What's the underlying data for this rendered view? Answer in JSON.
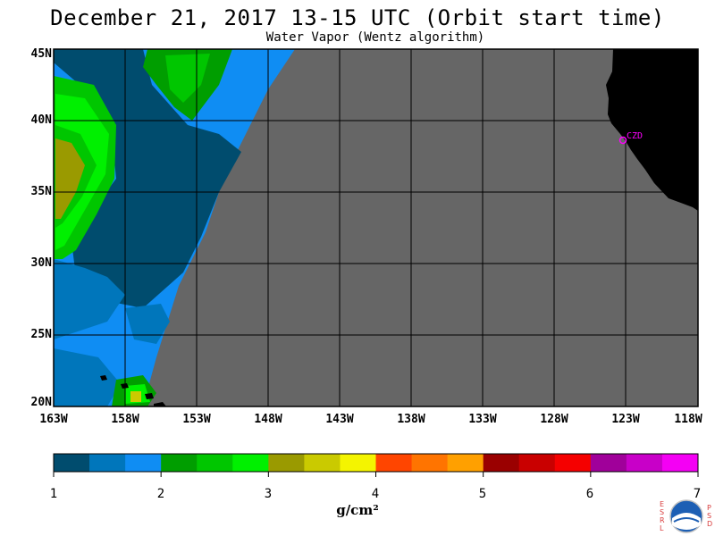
{
  "title": "December 21, 2017  13-15 UTC  (Orbit start time)",
  "subtitle": "Water Vapor (Wentz algorithm)",
  "lat_labels": [
    "45N",
    "40N",
    "35N",
    "30N",
    "25N",
    "20N"
  ],
  "lon_labels": [
    "163W",
    "158W",
    "153W",
    "148W",
    "143W",
    "138W",
    "133W",
    "128W",
    "123W",
    "118W"
  ],
  "station_label": "CZD",
  "colorbar": {
    "ticks": [
      "1",
      "2",
      "3",
      "4",
      "5",
      "6",
      "7"
    ],
    "unit": "g/cm²",
    "colors": [
      "#004c6e",
      "#0076bb",
      "#0f8df3",
      "#009e00",
      "#00c600",
      "#00f000",
      "#9a9a00",
      "#caca00",
      "#f4f400",
      "#ff4500",
      "#ff7400",
      "#ffa000",
      "#9a0000",
      "#c90000",
      "#f50000",
      "#a0009a",
      "#c800c8",
      "#f400f4"
    ]
  },
  "colors": {
    "no_data": "#666666",
    "land": "#000000",
    "grid": "#000000",
    "station": "#ff00ff"
  },
  "logo": {
    "left_letters": [
      "E",
      "S",
      "R",
      "L"
    ],
    "right_letters": [
      "P",
      "S",
      "D"
    ],
    "text": "NOAA"
  }
}
